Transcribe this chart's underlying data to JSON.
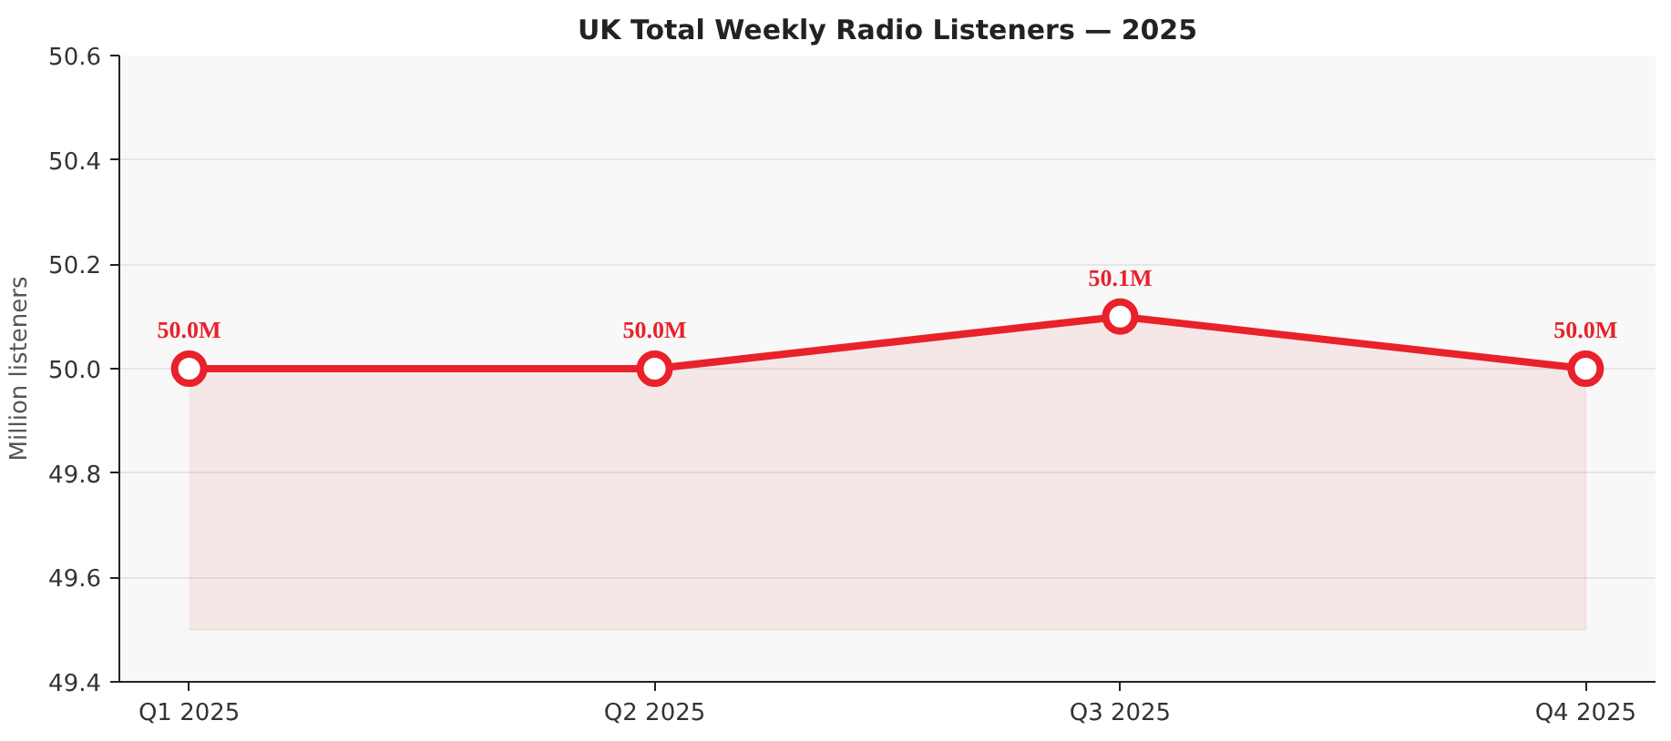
{
  "chart_data": {
    "type": "line",
    "title": "UK Total Weekly Radio Listeners — 2025",
    "ylabel": "Million listeners",
    "categories": [
      "Q1 2025",
      "Q2 2025",
      "Q3 2025",
      "Q4 2025"
    ],
    "series": [
      {
        "color": "#e8212b",
        "values": [
          50.0,
          50.0,
          50.1,
          50.0
        ],
        "lower": [
          49.5,
          49.5,
          49.5,
          49.5
        ],
        "upper": [
          50.0,
          50.0,
          50.1,
          50.0
        ],
        "value_labels": [
          "50.0M",
          "50.0M",
          "50.1M",
          "50.0M"
        ]
      }
    ],
    "ylim": [
      49.4,
      50.6
    ],
    "yticks": [
      49.4,
      49.6,
      49.8,
      {
        "value": 50.0,
        "label": "50.0"
      },
      50.2,
      50.4,
      50.6
    ],
    "grid": "y",
    "marker": "circle",
    "line_style": "solid"
  }
}
